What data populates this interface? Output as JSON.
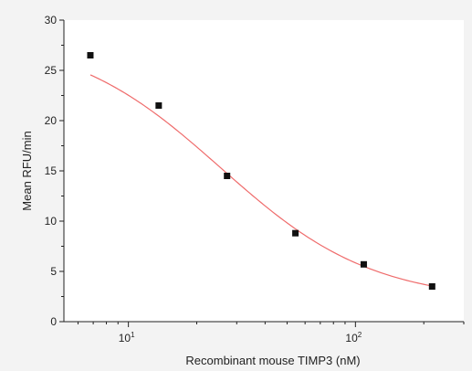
{
  "chart_data": {
    "type": "scatter",
    "title": "",
    "xlabel": "Recombinant mouse TIMP3 (nM)",
    "ylabel": "Mean RFU/min",
    "x_scale": "log",
    "xlim": [
      5.2,
      300
    ],
    "ylim": [
      0,
      30
    ],
    "x_ticks": [
      {
        "value": 10,
        "base": "10",
        "exp": "1"
      },
      {
        "value": 100,
        "base": "10",
        "exp": "2"
      }
    ],
    "y_ticks": [
      0,
      5,
      10,
      15,
      20,
      25,
      30
    ],
    "grid": false,
    "legend": "none",
    "series": [
      {
        "x": [
          6.8,
          13.6,
          27.2,
          54.4,
          108.8,
          217.6
        ],
        "y": [
          26.5,
          21.5,
          14.5,
          8.8,
          5.7,
          3.5
        ]
      }
    ],
    "fit_curve": {
      "model": "four-parameter logistic",
      "top": 28.6,
      "bottom": 2.0,
      "ec50": 25.5,
      "hill": 1.3,
      "x_range": [
        6.8,
        217.6
      ]
    },
    "colors": {
      "marker": "#111111",
      "curve": "#ef6b6b",
      "axis": "#222222",
      "plot_bg": "#ffffff",
      "page_bg": "#f3f3f3"
    }
  }
}
